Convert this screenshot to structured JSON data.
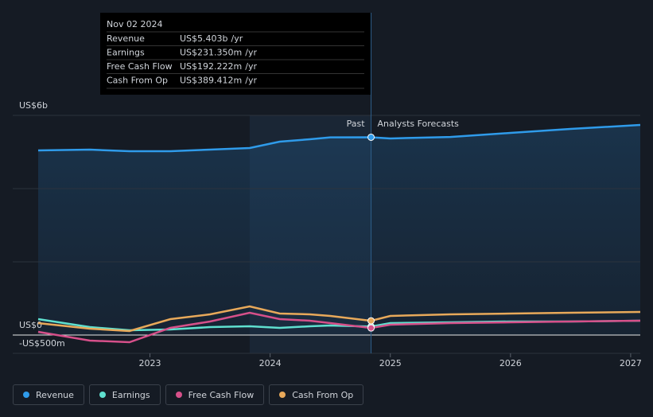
{
  "chart_data": {
    "type": "line",
    "x": [
      2022.07,
      2022.5,
      2022.83,
      2023.17,
      2023.5,
      2023.83,
      2024.08,
      2024.33,
      2024.5,
      2024.84,
      2025.0,
      2025.5,
      2026.0,
      2026.5,
      2027.08
    ],
    "series": [
      {
        "name": "Revenue",
        "color": "#2f9bea",
        "values": [
          5043,
          5065,
          5022,
          5022,
          5065,
          5109,
          5283,
          5348,
          5400,
          5403,
          5370,
          5410,
          5522,
          5630,
          5739
        ]
      },
      {
        "name": "Earnings",
        "color": "#5fe0cf",
        "values": [
          435,
          217,
          130,
          152,
          217,
          239,
          196,
          239,
          261,
          231.35,
          326,
          348,
          370,
          370,
          391
        ]
      },
      {
        "name": "Free Cash Flow",
        "color": "#d6508a",
        "values": [
          87,
          -152,
          -196,
          196,
          370,
          609,
          435,
          391,
          326,
          192.222,
          283,
          326,
          348,
          370,
          391
        ]
      },
      {
        "name": "Cash From Op",
        "color": "#e8a95a",
        "values": [
          326,
          174,
          109,
          435,
          565,
          783,
          587,
          565,
          522,
          389.412,
          522,
          565,
          587,
          609,
          630
        ]
      }
    ],
    "xlim": [
      2022.07,
      2027.08
    ],
    "xticks": [
      2023,
      2024,
      2025,
      2026,
      2027
    ],
    "ylim": [
      -500,
      6000
    ],
    "yticks": [
      {
        "value": 6000,
        "label": "US$6b"
      },
      {
        "value": 0,
        "label": "US$0"
      },
      {
        "value": -500,
        "label": "-US$500m"
      }
    ],
    "ygrid": [
      2000,
      4000,
      6000
    ],
    "past_start": 2023.83,
    "forecast_start": 2024.84,
    "annotations": {
      "past": "Past",
      "forecast": "Analysts Forecasts"
    },
    "tooltip": {
      "date": "Nov 02 2024",
      "unit": "/yr",
      "values": [
        "US$5.403b",
        "US$231.350m",
        "US$192.222m",
        "US$389.412m"
      ]
    }
  }
}
